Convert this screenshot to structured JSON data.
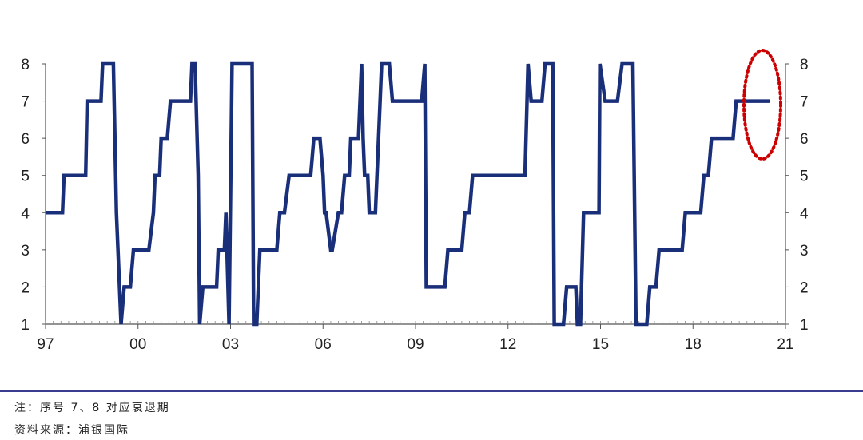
{
  "chart_data": {
    "type": "line",
    "title": "",
    "xlabel": "",
    "ylabel": "",
    "x_tick_labels": [
      "97",
      "00",
      "03",
      "06",
      "09",
      "12",
      "15",
      "18",
      "21"
    ],
    "y_ticks": [
      1,
      2,
      3,
      4,
      5,
      6,
      7,
      8
    ],
    "ylim": [
      1,
      8
    ],
    "xlim": [
      1997,
      2021
    ],
    "series": [
      {
        "color": "#1a2f7a",
        "points": [
          [
            1997.0,
            4
          ],
          [
            1997.55,
            4
          ],
          [
            1997.6,
            5
          ],
          [
            1998.3,
            5
          ],
          [
            1998.35,
            7
          ],
          [
            1998.8,
            7
          ],
          [
            1998.85,
            8
          ],
          [
            1999.2,
            8
          ],
          [
            1999.3,
            4
          ],
          [
            1999.45,
            1
          ],
          [
            1999.55,
            2
          ],
          [
            1999.75,
            2
          ],
          [
            1999.85,
            3
          ],
          [
            2000.2,
            3
          ],
          [
            2000.35,
            3
          ],
          [
            2000.5,
            4
          ],
          [
            2000.55,
            5
          ],
          [
            2000.7,
            5
          ],
          [
            2000.75,
            6
          ],
          [
            2000.95,
            6
          ],
          [
            2001.05,
            7
          ],
          [
            2001.7,
            7
          ],
          [
            2001.75,
            8
          ],
          [
            2001.85,
            8
          ],
          [
            2001.95,
            5
          ],
          [
            2002.0,
            1
          ],
          [
            2002.1,
            2
          ],
          [
            2002.55,
            2
          ],
          [
            2002.6,
            3
          ],
          [
            2002.8,
            3
          ],
          [
            2002.85,
            4
          ],
          [
            2002.95,
            1
          ],
          [
            2003.05,
            8
          ],
          [
            2003.7,
            8
          ],
          [
            2003.75,
            1
          ],
          [
            2003.85,
            1
          ],
          [
            2003.95,
            3
          ],
          [
            2004.5,
            3
          ],
          [
            2004.6,
            4
          ],
          [
            2004.75,
            4
          ],
          [
            2004.9,
            5
          ],
          [
            2005.6,
            5
          ],
          [
            2005.7,
            6
          ],
          [
            2005.9,
            6
          ],
          [
            2006.0,
            5
          ],
          [
            2006.05,
            4
          ],
          [
            2006.1,
            4
          ],
          [
            2006.25,
            3
          ],
          [
            2006.3,
            3
          ],
          [
            2006.5,
            4
          ],
          [
            2006.6,
            4
          ],
          [
            2006.7,
            5
          ],
          [
            2006.85,
            5
          ],
          [
            2006.9,
            6
          ],
          [
            2007.15,
            6
          ],
          [
            2007.25,
            8
          ],
          [
            2007.3,
            6
          ],
          [
            2007.35,
            5
          ],
          [
            2007.45,
            5
          ],
          [
            2007.5,
            4
          ],
          [
            2007.7,
            4
          ],
          [
            2007.9,
            8
          ],
          [
            2008.15,
            8
          ],
          [
            2008.25,
            7
          ],
          [
            2009.2,
            7
          ],
          [
            2009.3,
            8
          ],
          [
            2009.35,
            2
          ],
          [
            2009.95,
            2
          ],
          [
            2010.05,
            3
          ],
          [
            2010.5,
            3
          ],
          [
            2010.6,
            4
          ],
          [
            2010.75,
            4
          ],
          [
            2010.85,
            5
          ],
          [
            2012.55,
            5
          ],
          [
            2012.65,
            8
          ],
          [
            2012.75,
            7
          ],
          [
            2013.1,
            7
          ],
          [
            2013.2,
            8
          ],
          [
            2013.45,
            8
          ],
          [
            2013.5,
            1
          ],
          [
            2013.8,
            1
          ],
          [
            2013.9,
            2
          ],
          [
            2014.2,
            2
          ],
          [
            2014.25,
            1
          ],
          [
            2014.35,
            1
          ],
          [
            2014.45,
            4
          ],
          [
            2014.95,
            4
          ],
          [
            2014.98,
            8
          ],
          [
            2015.15,
            7
          ],
          [
            2015.55,
            7
          ],
          [
            2015.7,
            8
          ],
          [
            2016.05,
            8
          ],
          [
            2016.15,
            1
          ],
          [
            2016.5,
            1
          ],
          [
            2016.6,
            2
          ],
          [
            2016.8,
            2
          ],
          [
            2016.9,
            3
          ],
          [
            2017.65,
            3
          ],
          [
            2017.75,
            4
          ],
          [
            2018.25,
            4
          ],
          [
            2018.35,
            5
          ],
          [
            2018.5,
            5
          ],
          [
            2018.6,
            6
          ],
          [
            2019.3,
            6
          ],
          [
            2019.4,
            7
          ],
          [
            2020.5,
            7
          ]
        ]
      }
    ],
    "annotation": {
      "shape": "dashed ellipse",
      "color": "#cc0000"
    },
    "grid": false
  },
  "footer": {
    "note": "注：序号 7、8 对应衰退期",
    "source": "资料来源：浦银国际"
  }
}
